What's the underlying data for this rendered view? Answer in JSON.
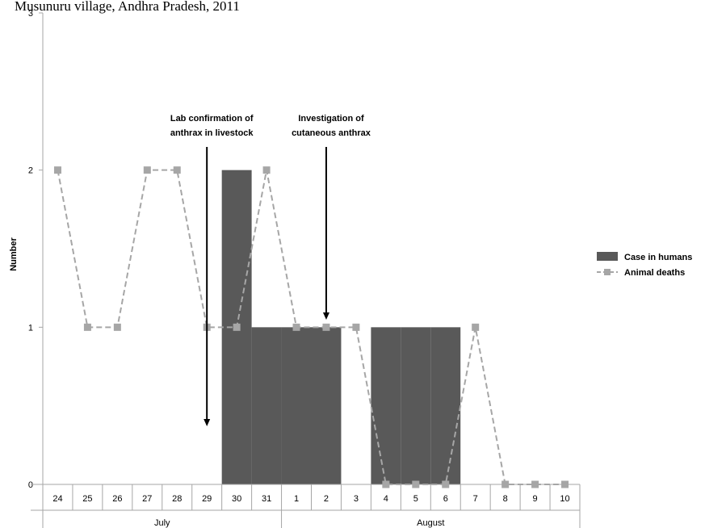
{
  "chart_data": {
    "type": "bar",
    "title": "Musunuru village, Andhra Pradesh, 2011",
    "ylabel": "Number",
    "xlabel": "",
    "ylim": [
      0,
      3
    ],
    "yticks": [
      0,
      1,
      2,
      3
    ],
    "grid": false,
    "legend_position": "right",
    "categories": [
      "24",
      "25",
      "26",
      "27",
      "28",
      "29",
      "30",
      "31",
      "1",
      "2",
      "3",
      "4",
      "5",
      "6",
      "7",
      "8",
      "9",
      "10"
    ],
    "months": [
      {
        "label": "July",
        "start": 0,
        "end": 7
      },
      {
        "label": "August",
        "start": 8,
        "end": 17
      }
    ],
    "series": [
      {
        "name": "Case in humans",
        "type": "bar",
        "color": "#595959",
        "values": [
          0,
          0,
          0,
          0,
          0,
          0,
          2,
          1,
          1,
          1,
          0,
          1,
          1,
          1,
          0,
          0,
          0,
          0
        ]
      },
      {
        "name": "Animal deaths",
        "type": "line",
        "style": "dashed",
        "marker": "square",
        "color": "#a6a6a6",
        "values": [
          2,
          1,
          1,
          2,
          2,
          1,
          1,
          2,
          1,
          1,
          1,
          0,
          0,
          0,
          1,
          0,
          0,
          0
        ]
      }
    ],
    "annotations": [
      {
        "line1": "Lab confirmation of",
        "line2": "anthrax in livestock",
        "category_index": 5
      },
      {
        "line1": "Investigation of",
        "line2": "cutaneous anthrax",
        "category_index": 9
      }
    ]
  }
}
